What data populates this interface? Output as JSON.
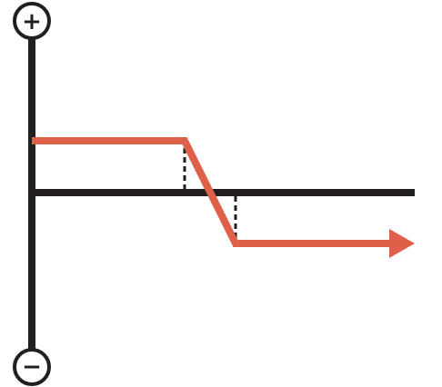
{
  "diagram": {
    "plus_symbol": "+",
    "minus_symbol": "−",
    "colors": {
      "axis": "#231f20",
      "payoff_line": "#df6048",
      "background": "#ffffff"
    },
    "icons": {
      "top_marker": "plus-circle-icon",
      "bottom_marker": "minus-circle-icon",
      "line_end": "arrow-right-icon"
    }
  }
}
